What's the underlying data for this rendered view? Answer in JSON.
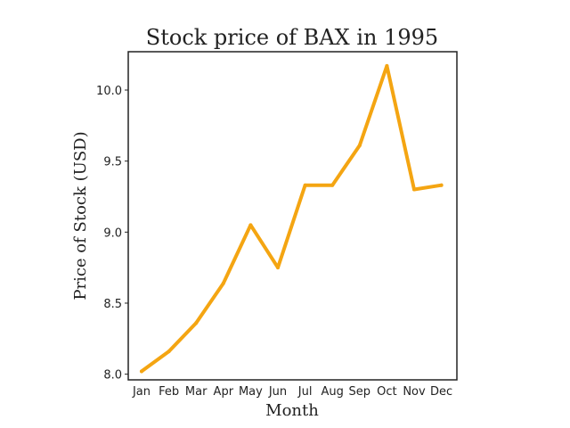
{
  "chart_data": {
    "type": "line",
    "title": "Stock price of BAX in 1995",
    "xlabel": "Month",
    "ylabel": "Price of Stock (USD)",
    "categories": [
      "Jan",
      "Feb",
      "Mar",
      "Apr",
      "May",
      "Jun",
      "Jul",
      "Aug",
      "Sep",
      "Oct",
      "Nov",
      "Dec"
    ],
    "series": [
      {
        "values": [
          8.02,
          8.16,
          8.36,
          8.64,
          9.05,
          8.75,
          9.33,
          9.33,
          9.61,
          10.17,
          9.3,
          9.33
        ]
      }
    ],
    "ylim": [
      7.96,
      10.27
    ],
    "yticks": [
      "8.0",
      "8.5",
      "9.0",
      "9.5",
      "10.0"
    ],
    "grid": false,
    "line_color": "#f4a512",
    "frame_color": "#222222"
  }
}
